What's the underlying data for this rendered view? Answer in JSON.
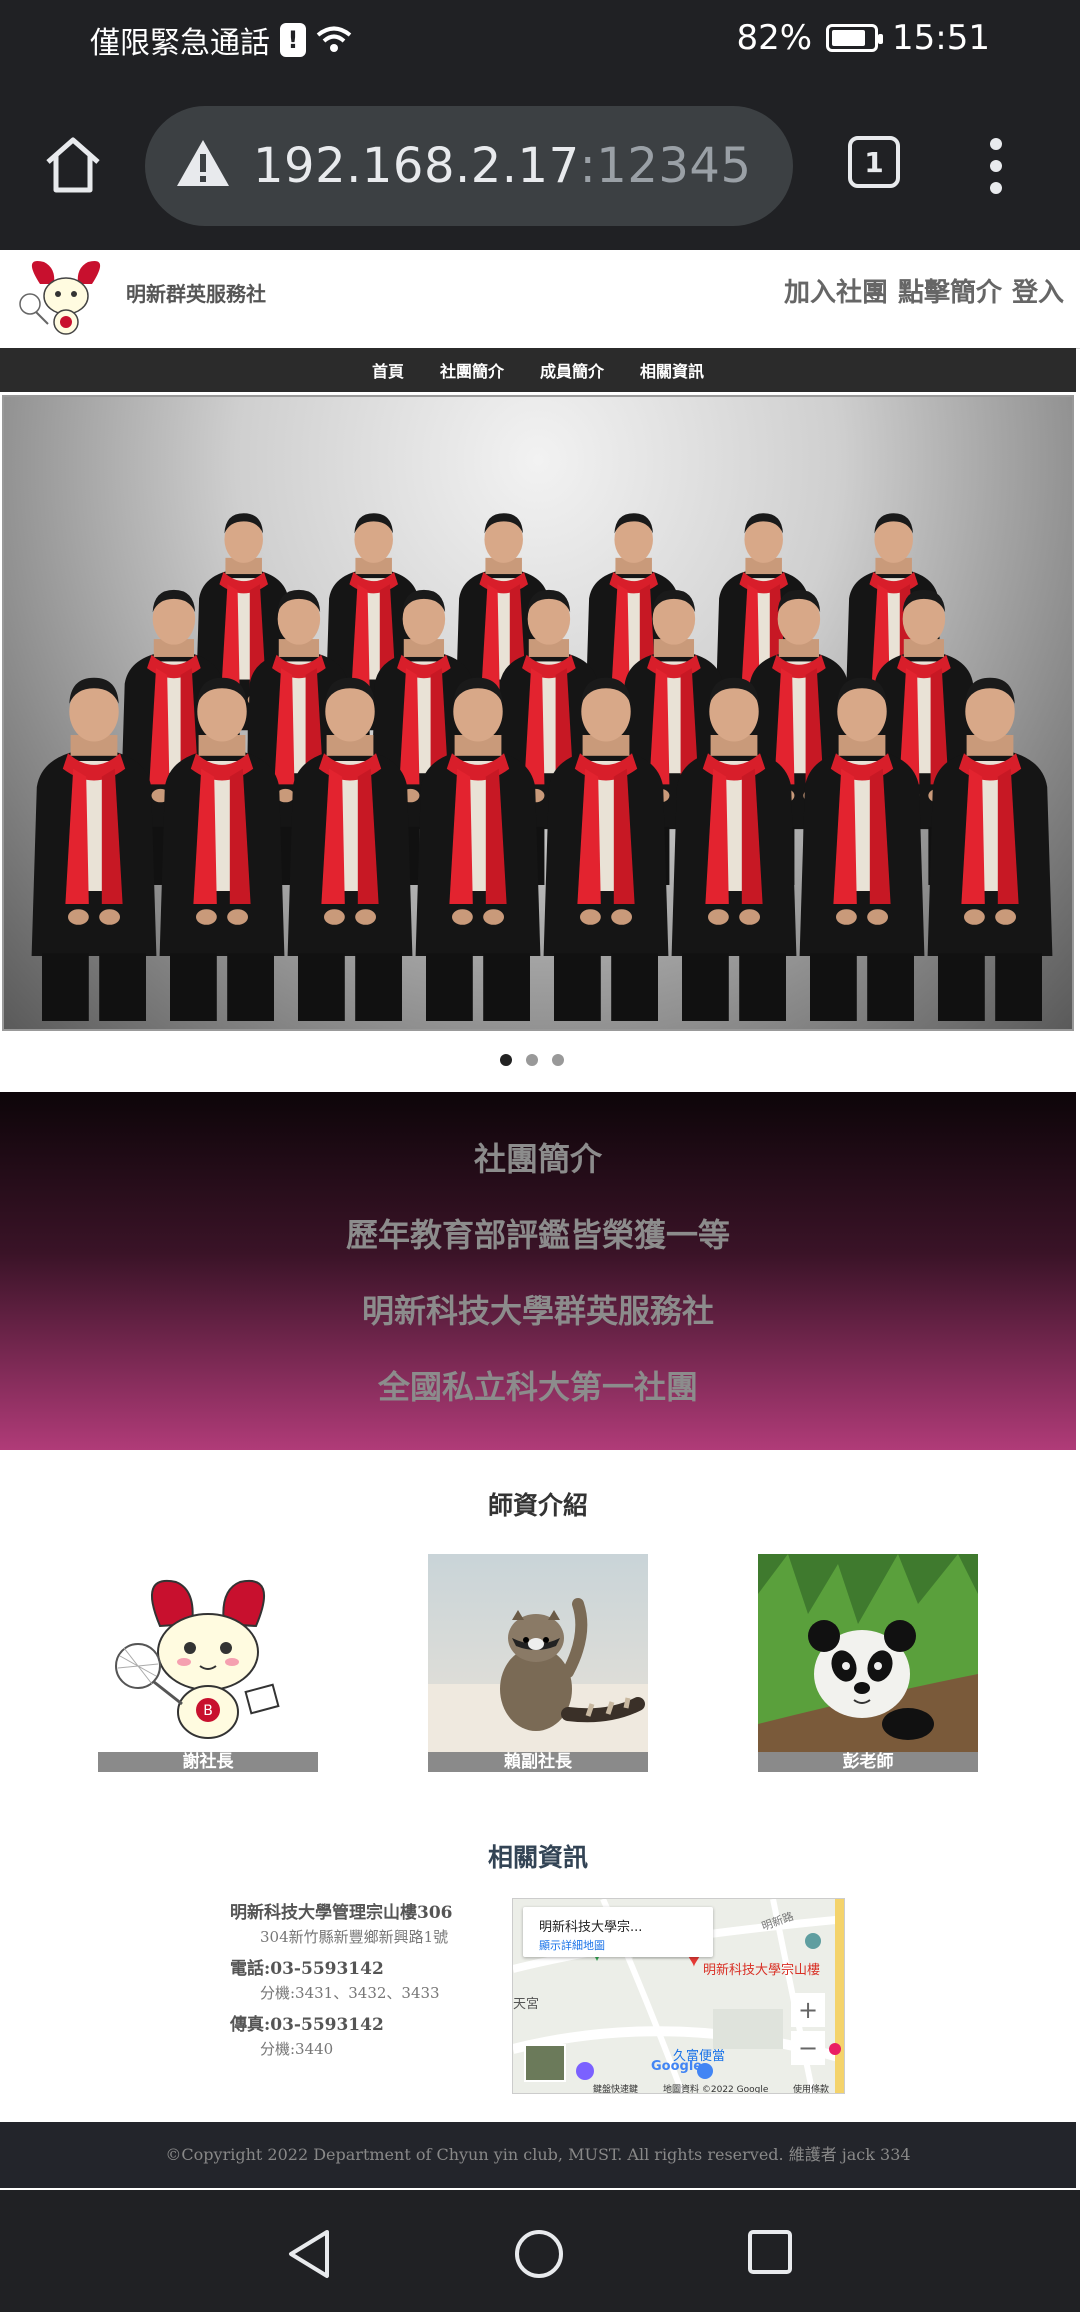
{
  "status_bar": {
    "carrier": "僅限緊急通話",
    "battery_percent": "82%",
    "battery_level": 0.82,
    "time": "15:51"
  },
  "browser": {
    "url_host": "192.168.2.17",
    "url_port": ":12345",
    "tab_count": "1",
    "icons": [
      "home-icon",
      "warning-icon",
      "tabs-icon",
      "more-vert-icon"
    ]
  },
  "site": {
    "name": "明新群英服務社",
    "header_links": [
      "加入社團",
      "點擊簡介",
      "登入"
    ],
    "nav": [
      "首頁",
      "社團簡介",
      "成員簡介",
      "相關資訊"
    ]
  },
  "carousel": {
    "slide_count": 3,
    "active_index": 0
  },
  "intro": {
    "lines": [
      "社團簡介",
      "歷年教育部評鑑皆榮獲一等",
      "明新科技大學群英服務社",
      "全國私立科大第一社團"
    ]
  },
  "teachers": {
    "title": "師資介紹",
    "items": [
      {
        "name": "謝社長",
        "picture": "mascot"
      },
      {
        "name": "賴副社長",
        "picture": "raccoon"
      },
      {
        "name": "彭老師",
        "picture": "panda"
      }
    ]
  },
  "related": {
    "title": "相關資訊",
    "address_title": "明新科技大學管理宗山樓306",
    "address": "304新竹縣新豐鄉新興路1號",
    "phone_label": "電話:03-5593142",
    "phone_ext": "分機:3431、3432、3433",
    "fax_label": "傳真:03-5593142",
    "fax_ext": "分機:3440",
    "map": {
      "card_title": "明新科技大學宗...",
      "card_link": "顯示詳細地圖",
      "pin_label": "明新科技大學宗山樓",
      "place_1": "天宮",
      "place_2": "久富便當",
      "place_3": "明新路",
      "google": "Google",
      "attribution_1": "鍵盤快速鍵",
      "attribution_2": "地圖資料 ©2022 Google",
      "attribution_3": "使用條款",
      "zoom_in": "+",
      "zoom_out": "−"
    }
  },
  "footer": {
    "text": "©Copyright 2022 Department of Chyun yin club, MUST. All rights reserved. 維護者 jack 334"
  },
  "colors": {
    "intro_top": "#0d0509",
    "intro_bottom": "#b03b78",
    "footer_bg": "#23252b",
    "chrome_bg": "#202124"
  }
}
